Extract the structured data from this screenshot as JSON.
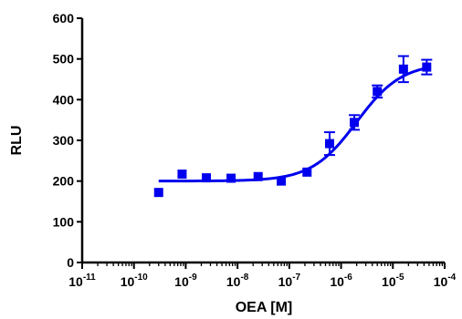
{
  "chart_data": {
    "type": "scatter",
    "title": "",
    "xlabel": "OEA [M]",
    "ylabel": "RLU",
    "x_scale": "log",
    "xlim": [
      1e-11,
      0.0001
    ],
    "ylim": [
      0,
      600
    ],
    "grid": false,
    "legend": "none",
    "x_ticks": [
      {
        "value": 1e-11,
        "base": "10",
        "exp": "-11"
      },
      {
        "value": 1e-10,
        "base": "10",
        "exp": "-10"
      },
      {
        "value": 1e-09,
        "base": "10",
        "exp": "-9"
      },
      {
        "value": 1e-08,
        "base": "10",
        "exp": "-8"
      },
      {
        "value": 1e-07,
        "base": "10",
        "exp": "-7"
      },
      {
        "value": 1e-06,
        "base": "10",
        "exp": "-6"
      },
      {
        "value": 1e-05,
        "base": "10",
        "exp": "-5"
      },
      {
        "value": 0.0001,
        "base": "10",
        "exp": "-4"
      }
    ],
    "y_ticks": [
      {
        "value": 0,
        "label": "0"
      },
      {
        "value": 100,
        "label": "100"
      },
      {
        "value": 200,
        "label": "200"
      },
      {
        "value": 300,
        "label": "300"
      },
      {
        "value": 400,
        "label": "400"
      },
      {
        "value": 500,
        "label": "500"
      },
      {
        "value": 600,
        "label": "600"
      }
    ],
    "series": [
      {
        "color": "#0000ee",
        "marker": "square",
        "points": [
          {
            "x": 3e-10,
            "y": 172,
            "err": 0
          },
          {
            "x": 8.5e-10,
            "y": 217,
            "err": 0
          },
          {
            "x": 2.5e-09,
            "y": 208,
            "err": 0
          },
          {
            "x": 7.5e-09,
            "y": 207,
            "err": 0
          },
          {
            "x": 2.5e-08,
            "y": 211,
            "err": 0
          },
          {
            "x": 7e-08,
            "y": 200,
            "err": 0
          },
          {
            "x": 2.2e-07,
            "y": 222,
            "err": 0
          },
          {
            "x": 6e-07,
            "y": 292,
            "err": 28
          },
          {
            "x": 1.8e-06,
            "y": 344,
            "err": 18
          },
          {
            "x": 5e-06,
            "y": 420,
            "err": 15
          },
          {
            "x": 1.6e-05,
            "y": 475,
            "err": 32
          },
          {
            "x": 4.5e-05,
            "y": 480,
            "err": 18
          }
        ],
        "fit": {
          "model": "sigmoidal dose-response",
          "bottom": 200,
          "top": 490,
          "logEC50": -5.7,
          "hill": 1
        }
      }
    ]
  }
}
